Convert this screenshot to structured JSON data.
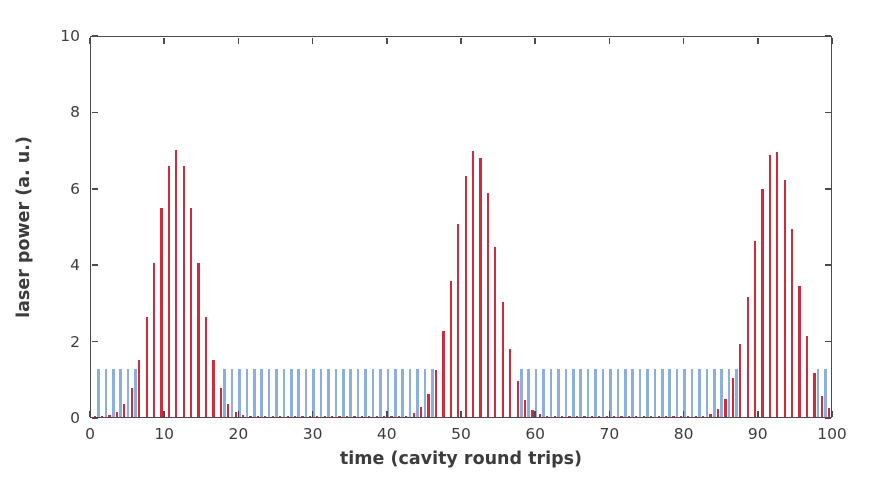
{
  "figure": {
    "background": "#ffffff",
    "axis_color": "#4b4b4b",
    "text_color": "#3d3d3d"
  },
  "chart_data": {
    "type": "bar",
    "title": "",
    "xlabel": "time (cavity round trips)",
    "ylabel": "laser power (a. u.)",
    "xlim": [
      0,
      100
    ],
    "ylim": [
      0,
      10
    ],
    "xticks": [
      0,
      10,
      20,
      30,
      40,
      50,
      60,
      70,
      80,
      90,
      100
    ],
    "yticks": [
      0,
      2,
      4,
      6,
      8,
      10
    ],
    "grid": false,
    "legend": "none",
    "series": [
      {
        "name": "steady-pulse-train-blue",
        "color": "#8cb0dc",
        "bar_width_units": 0.35,
        "x_step": 1,
        "height": 1.27,
        "x_ranges": [
          [
            1,
            6
          ],
          [
            18,
            46
          ],
          [
            58,
            87
          ],
          [
            98,
            99
          ]
        ]
      },
      {
        "name": "q-switched-pulse-bunches-red",
        "color": "#d02b3d",
        "bar_width_units": 0.3,
        "x_start": 0.5,
        "x_step": 1,
        "pulse_centers": [
          11.5,
          51.8,
          92.1
        ],
        "pulse_amplitude": 7.0,
        "pulse_sigma": 2.85,
        "values": [
          0.005,
          0.015,
          0.05,
          0.13,
          0.34,
          0.76,
          1.5,
          2.61,
          4.02,
          5.47,
          6.58,
          7.0,
          6.58,
          5.47,
          4.02,
          2.61,
          1.5,
          0.76,
          0.34,
          0.13,
          0.05,
          0.015,
          0.005,
          0.002,
          0.0,
          0.0,
          0.0,
          0.0,
          0.0,
          0.0,
          0.0,
          0.0,
          0.0,
          0.0,
          0.0,
          0.0,
          0.0,
          0.0,
          0.0,
          0.0,
          0.003,
          0.01,
          0.03,
          0.1,
          0.26,
          0.6,
          1.24,
          2.24,
          3.57,
          5.05,
          6.31,
          6.96,
          6.79,
          5.86,
          4.46,
          3.01,
          1.79,
          0.94,
          0.44,
          0.18,
          0.07,
          0.02,
          0.007,
          0.0,
          0.0,
          0.0,
          0.0,
          0.0,
          0.0,
          0.0,
          0.0,
          0.0,
          0.0,
          0.0,
          0.0,
          0.0,
          0.0,
          0.0,
          0.0,
          0.0,
          0.0,
          0.007,
          0.024,
          0.073,
          0.2,
          0.48,
          1.01,
          1.9,
          3.15,
          4.61,
          5.98,
          6.85,
          6.93,
          6.2,
          4.91,
          3.43,
          2.12,
          1.16,
          0.56,
          0.24
        ]
      }
    ]
  }
}
